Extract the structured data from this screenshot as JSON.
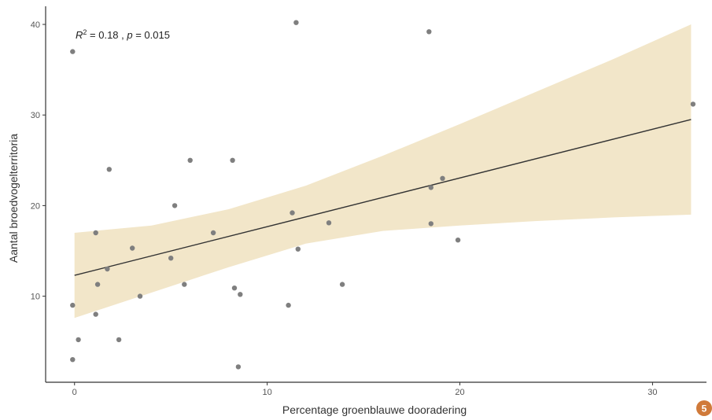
{
  "chart_data": {
    "type": "scatter",
    "title": "",
    "xlabel": "Percentage groenblauwe dooradering",
    "ylabel": "Aantal broedvogelterritoria",
    "xlim": [
      -1.5,
      32.8
    ],
    "ylim": [
      0.5,
      42
    ],
    "xticks": [
      0,
      10,
      20,
      30
    ],
    "yticks": [
      10,
      20,
      30,
      40
    ],
    "grid": false,
    "annotation": {
      "r_symbol": "R",
      "sup": "2",
      "text": " = 0.18 , ",
      "p_symbol": "p",
      "p_text": " = 0.015"
    },
    "points": [
      {
        "x": -0.1,
        "y": 37
      },
      {
        "x": -0.1,
        "y": 9
      },
      {
        "x": -0.1,
        "y": 3
      },
      {
        "x": 0.2,
        "y": 5.2
      },
      {
        "x": 1.1,
        "y": 17
      },
      {
        "x": 1.2,
        "y": 11.3
      },
      {
        "x": 1.1,
        "y": 8
      },
      {
        "x": 1.7,
        "y": 13
      },
      {
        "x": 1.8,
        "y": 24
      },
      {
        "x": 2.3,
        "y": 5.2
      },
      {
        "x": 3.0,
        "y": 15.3
      },
      {
        "x": 3.4,
        "y": 10
      },
      {
        "x": 5.0,
        "y": 14.2
      },
      {
        "x": 5.2,
        "y": 20
      },
      {
        "x": 5.7,
        "y": 11.3
      },
      {
        "x": 6.0,
        "y": 25
      },
      {
        "x": 7.2,
        "y": 17
      },
      {
        "x": 8.2,
        "y": 25
      },
      {
        "x": 8.3,
        "y": 10.9
      },
      {
        "x": 8.5,
        "y": 2.2
      },
      {
        "x": 8.6,
        "y": 10.2
      },
      {
        "x": 11.1,
        "y": 9
      },
      {
        "x": 11.3,
        "y": 19.2
      },
      {
        "x": 11.5,
        "y": 40.2
      },
      {
        "x": 11.6,
        "y": 15.2
      },
      {
        "x": 13.2,
        "y": 18.1
      },
      {
        "x": 13.9,
        "y": 11.3
      },
      {
        "x": 18.4,
        "y": 39.2
      },
      {
        "x": 18.5,
        "y": 22
      },
      {
        "x": 18.5,
        "y": 18
      },
      {
        "x": 19.1,
        "y": 23
      },
      {
        "x": 19.9,
        "y": 16.2
      },
      {
        "x": 32.1,
        "y": 31.2
      }
    ],
    "fit_line": {
      "x": [
        0,
        32
      ],
      "y": [
        12.3,
        29.5
      ]
    },
    "confidence_band": {
      "x": [
        0,
        4,
        8,
        12,
        16,
        20,
        24,
        28,
        32
      ],
      "upper": [
        17.0,
        17.8,
        19.6,
        22.2,
        25.5,
        29.0,
        32.6,
        36.2,
        40.0
      ],
      "lower": [
        7.6,
        10.4,
        13.2,
        15.8,
        17.2,
        17.8,
        18.3,
        18.7,
        19.0
      ]
    },
    "colors": {
      "point": "#7f7f7f",
      "line": "#333333",
      "band": "#f2e6c9",
      "axis": "#333333"
    }
  },
  "page_badge": {
    "label": "5",
    "color": "#d07a3a"
  }
}
